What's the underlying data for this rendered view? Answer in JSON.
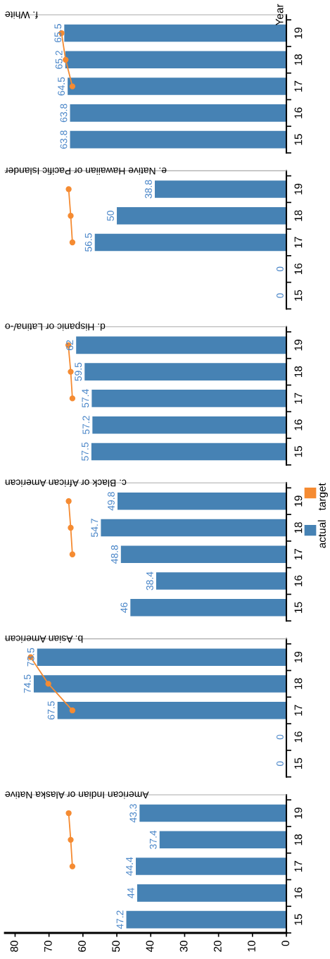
{
  "chart_data": [
    {
      "type": "bar",
      "orientation": "horizontal",
      "title": "f. White",
      "ylabel": "Year",
      "categories": [
        "19",
        "18",
        "17",
        "16",
        "15"
      ],
      "xlim": [
        83,
        0
      ],
      "tick_labels": "y",
      "marker": "circle",
      "series": [
        {
          "color": "#4682b4",
          "values": [
            65.5,
            65.2,
            64.5,
            63.8,
            63.8
          ],
          "value_labels": [
            "65.5",
            "65.2",
            "64.5",
            "63.8",
            "63.8"
          ]
        },
        {
          "type": "line",
          "color": "#f58b32",
          "values": [
            66.3,
            65.1,
            63.1,
            null,
            null
          ]
        }
      ]
    },
    {
      "type": "bar",
      "orientation": "horizontal",
      "title": "e. Native Hawaiian or Pacific Islander",
      "categories": [
        "19",
        "18",
        "17",
        "16",
        "15"
      ],
      "xlim": [
        83,
        0
      ],
      "tick_labels": "y",
      "marker": "circle",
      "series": [
        {
          "color": "#4682b4",
          "values": [
            38.8,
            50,
            56.5,
            0,
            0
          ],
          "value_labels": [
            "38.8",
            "50",
            "56.5",
            "0",
            "0"
          ]
        },
        {
          "type": "line",
          "color": "#f58b32",
          "values": [
            64.2,
            63.6,
            63.1,
            null,
            null
          ]
        }
      ]
    },
    {
      "type": "bar",
      "orientation": "horizontal",
      "title": "d. Hispanic or Latina/-o",
      "categories": [
        "19",
        "18",
        "17",
        "16",
        "15"
      ],
      "xlim": [
        83,
        0
      ],
      "tick_labels": "y",
      "marker": "circle",
      "legend": "right",
      "series": [
        {
          "name": "actual",
          "color": "#4682b4",
          "values": [
            62,
            59.5,
            57.4,
            57.2,
            57.5
          ],
          "value_labels": [
            "62",
            "59.5",
            "57.4",
            "57.2",
            "57.5"
          ]
        },
        {
          "name": "target",
          "type": "line",
          "color": "#f58b32",
          "values": [
            64.3,
            63.6,
            63.1,
            null,
            null
          ]
        }
      ]
    },
    {
      "type": "bar",
      "orientation": "horizontal",
      "title": "c. Black or African American",
      "categories": [
        "19",
        "18",
        "17",
        "16",
        "15"
      ],
      "xlim": [
        83,
        0
      ],
      "tick_labels": "y",
      "marker": "circle",
      "series": [
        {
          "color": "#4682b4",
          "values": [
            49.8,
            54.7,
            48.8,
            38.4,
            46
          ],
          "value_labels": [
            "49.8",
            "54.7",
            "48.8",
            "38.4",
            "46"
          ]
        },
        {
          "type": "line",
          "color": "#f58b32",
          "values": [
            64.2,
            63.6,
            63.1,
            null,
            null
          ]
        }
      ]
    },
    {
      "type": "bar",
      "orientation": "horizontal",
      "title": "b. Asian American",
      "categories": [
        "19",
        "18",
        "17",
        "16",
        "15"
      ],
      "xlim": [
        83,
        0
      ],
      "tick_labels": "y",
      "marker": "circle",
      "series": [
        {
          "color": "#4682b4",
          "values": [
            73.5,
            74.5,
            67.5,
            0,
            0
          ],
          "value_labels": [
            "73.5",
            "74.5",
            "67.5",
            "0",
            "0"
          ]
        },
        {
          "type": "line",
          "color": "#f58b32",
          "values": [
            75.4,
            70.2,
            63.1,
            null,
            null
          ]
        }
      ]
    },
    {
      "type": "bar",
      "orientation": "horizontal",
      "title": "American Indian or Alaska Native",
      "categories": [
        "19",
        "18",
        "17",
        "16",
        "15"
      ],
      "xlim": [
        83,
        0
      ],
      "xticks": [
        0,
        10,
        20,
        30,
        40,
        50,
        60,
        70,
        80
      ],
      "marker": "circle",
      "series": [
        {
          "color": "#4682b4",
          "values": [
            43.3,
            37.4,
            44.4,
            44,
            47.2
          ],
          "value_labels": [
            "43.3",
            "37.4",
            "44.4",
            "44",
            "47.2"
          ]
        },
        {
          "type": "line",
          "color": "#f58b32",
          "values": [
            64.2,
            63.6,
            63.1,
            null,
            null
          ]
        }
      ]
    }
  ]
}
